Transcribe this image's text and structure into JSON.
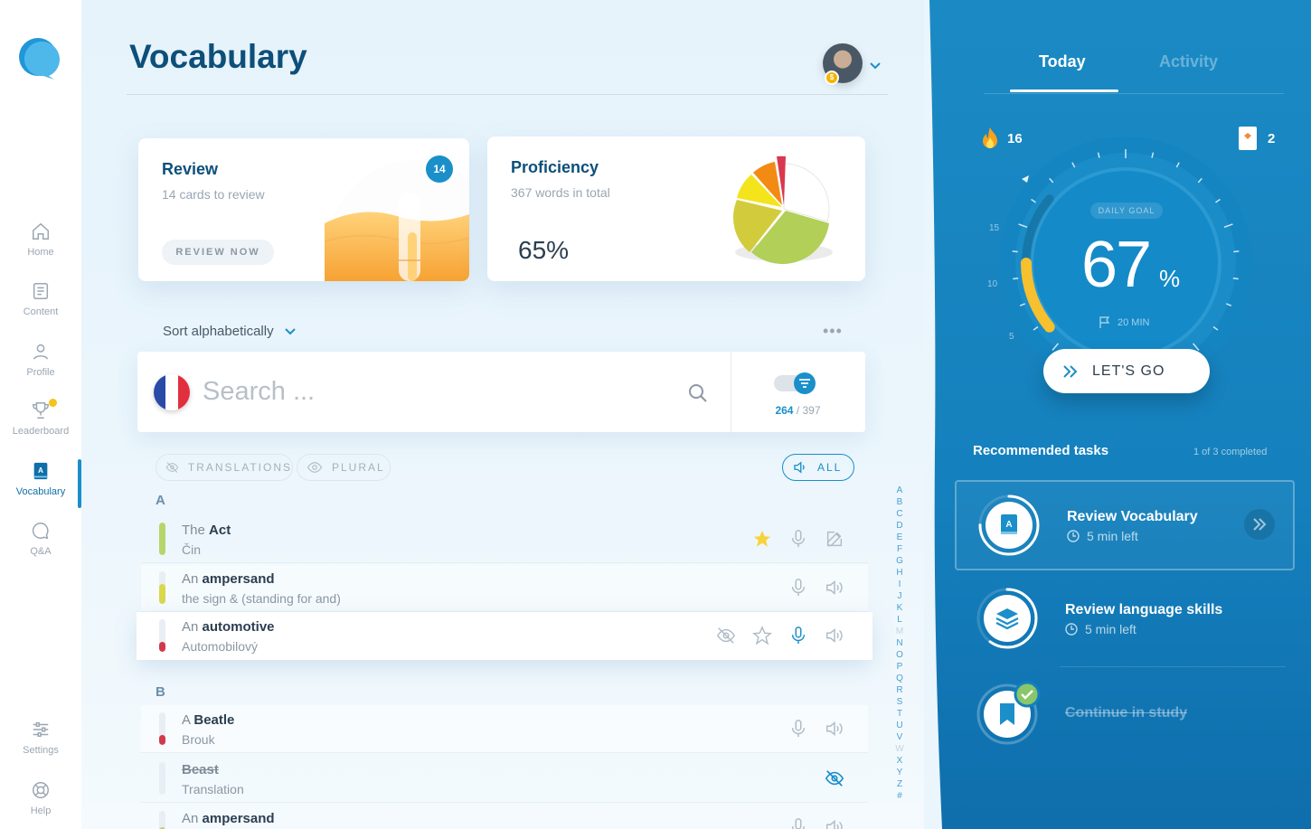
{
  "sidebar": {
    "items": [
      {
        "label": "Home",
        "icon": "home-icon"
      },
      {
        "label": "Content",
        "icon": "content-icon"
      },
      {
        "label": "Profile",
        "icon": "profile-icon"
      },
      {
        "label": "Leaderboard",
        "icon": "trophy-icon"
      },
      {
        "label": "Vocabulary",
        "icon": "vocabulary-icon",
        "active": true
      },
      {
        "label": "Q&A",
        "icon": "chat-icon"
      }
    ],
    "bottom": [
      {
        "label": "Settings",
        "icon": "settings-icon"
      },
      {
        "label": "Help",
        "icon": "help-icon"
      }
    ]
  },
  "header": {
    "title": "Vocabulary",
    "avatar_badge": "$"
  },
  "review_card": {
    "title": "Review",
    "subtitle": "14 cards to review",
    "button": "REVIEW NOW",
    "badge": "14"
  },
  "proficiency_card": {
    "title": "Proficiency",
    "subtitle": "367 words in total",
    "percent": "65%"
  },
  "sort": {
    "label": "Sort alphabetically",
    "more": "•••"
  },
  "search": {
    "placeholder": "Search ...",
    "value": "",
    "count_current": "264",
    "count_total": "/ 397"
  },
  "filters": {
    "translations": "TRANSLATIONS",
    "plural": "PLURAL",
    "all": "ALL"
  },
  "sections": [
    {
      "letter": "A",
      "words": [
        {
          "article": "The ",
          "word": "Act",
          "translation": "Čin",
          "level": 1.0,
          "level_color": "#b6d66a"
        },
        {
          "article": "An ",
          "word": "ampersand",
          "translation": "the sign & (standing for and)",
          "level": 0.6,
          "level_color": "#d8d84a"
        },
        {
          "article": "An ",
          "word": "automotive",
          "translation": "Automobilový",
          "level": 0.3,
          "level_color": "#d2394a"
        }
      ]
    },
    {
      "letter": "B",
      "words": [
        {
          "article": "A ",
          "word": "Beatle",
          "translation": "Brouk",
          "level": 0.3,
          "level_color": "#d2394a"
        },
        {
          "article": "",
          "word": "Beast",
          "translation": "Translation",
          "level": 0,
          "level_color": "#e8eef3"
        },
        {
          "article": "An ",
          "word": "ampersand",
          "translation": "",
          "level": 0.5,
          "level_color": "#b6d66a"
        }
      ]
    }
  ],
  "alphabet": [
    "A",
    "B",
    "C",
    "D",
    "E",
    "F",
    "G",
    "H",
    "I",
    "J",
    "K",
    "L",
    "M",
    "N",
    "O",
    "P",
    "Q",
    "R",
    "S",
    "T",
    "U",
    "V",
    "W",
    "X",
    "Y",
    "Z",
    "#"
  ],
  "alphabet_dimmed": [
    "M",
    "W"
  ],
  "right_panel": {
    "tabs": [
      "Today",
      "Activity"
    ],
    "streak": "16",
    "cards": "2",
    "daily_goal_label": "DAILY GOAL",
    "goal_value": "67",
    "goal_unit": "%",
    "goal_minutes": "20 MIN",
    "tick_labels": [
      "15",
      "10",
      "5"
    ],
    "go_button": "LET'S GO",
    "recommended_title": "Recommended tasks",
    "recommended_progress": "1 of 3 completed",
    "tasks": [
      {
        "title": "Review Vocabulary",
        "time": "5 min left",
        "progress": 0.75,
        "done": false
      },
      {
        "title": "Review language skills",
        "time": "5 min left",
        "progress": 0.6,
        "done": false
      },
      {
        "title": "Continue in study",
        "time": "",
        "progress": 1.0,
        "done": true
      }
    ]
  },
  "colors": {
    "accent": "#1a8fc9",
    "brand_dark": "#0d4f7a",
    "panel": "#1480bd",
    "gauge_fill": "#f6c02e"
  }
}
